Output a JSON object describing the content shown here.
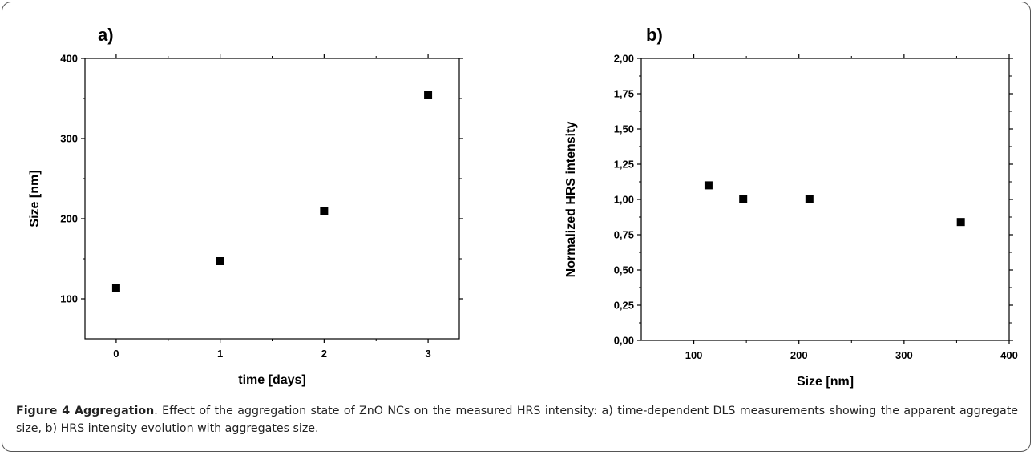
{
  "chart_data": [
    {
      "type": "scatter",
      "panel_label": "a)",
      "xlabel": "time [days]",
      "ylabel": "Size [nm]",
      "xlim": [
        -0.3,
        3.3
      ],
      "ylim": [
        50,
        400
      ],
      "xticks": [
        0,
        1,
        2,
        3
      ],
      "xtick_labels": [
        "0",
        "1",
        "2",
        "3"
      ],
      "yticks": [
        100,
        200,
        300,
        400
      ],
      "ytick_labels": [
        "100",
        "200",
        "300",
        "400"
      ],
      "x": [
        0,
        1,
        2,
        3
      ],
      "y": [
        114,
        147,
        210,
        354
      ],
      "grid": false,
      "marker": "square",
      "color": "#000000"
    },
    {
      "type": "scatter",
      "panel_label": "b)",
      "xlabel": "Size [nm]",
      "ylabel": "Normalized HRS intensity",
      "xlim": [
        50,
        400
      ],
      "ylim": [
        0,
        2
      ],
      "xticks": [
        100,
        200,
        300,
        400
      ],
      "xtick_labels": [
        "100",
        "200",
        "300",
        "400"
      ],
      "yticks": [
        0,
        0.25,
        0.5,
        0.75,
        1,
        1.25,
        1.5,
        1.75,
        2
      ],
      "ytick_labels": [
        "0,00",
        "0,25",
        "0,50",
        "0,75",
        "1,00",
        "1,25",
        "1,50",
        "1,75",
        "2,00"
      ],
      "x": [
        114,
        147,
        210,
        354
      ],
      "y": [
        1.1,
        1.0,
        1.0,
        0.84
      ],
      "grid": false,
      "marker": "square",
      "color": "#000000"
    }
  ],
  "caption": {
    "bold": "Figure 4 Aggregation",
    "text": ". Effect of the aggregation state of ZnO NCs on the measured HRS intensity: a) time-dependent DLS measurements showing the apparent aggregate size, b) HRS intensity evolution with aggregates size."
  }
}
